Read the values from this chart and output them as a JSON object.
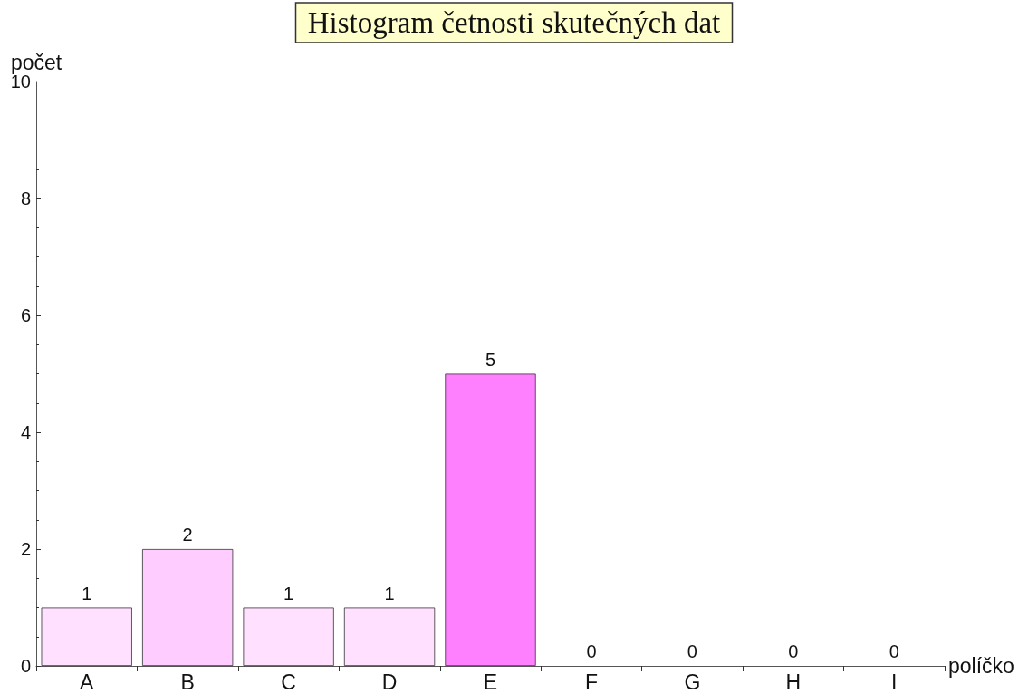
{
  "chart_data": {
    "type": "bar",
    "title": "Histogram četnosti skutečných dat",
    "xlabel": "políčko",
    "ylabel": "počet",
    "categories": [
      "A",
      "B",
      "C",
      "D",
      "E",
      "F",
      "G",
      "H",
      "I"
    ],
    "values": [
      1,
      2,
      1,
      1,
      5,
      0,
      0,
      0,
      0
    ],
    "colors": [
      "#ffe0ff",
      "#ffccff",
      "#ffe0ff",
      "#ffe0ff",
      "#ff80ff",
      "#ffffff",
      "#ffffff",
      "#ffffff",
      "#ffffff"
    ],
    "ylim": [
      0,
      10
    ],
    "yticks": [
      0,
      2,
      4,
      6,
      8,
      10
    ],
    "data_labels": true
  }
}
